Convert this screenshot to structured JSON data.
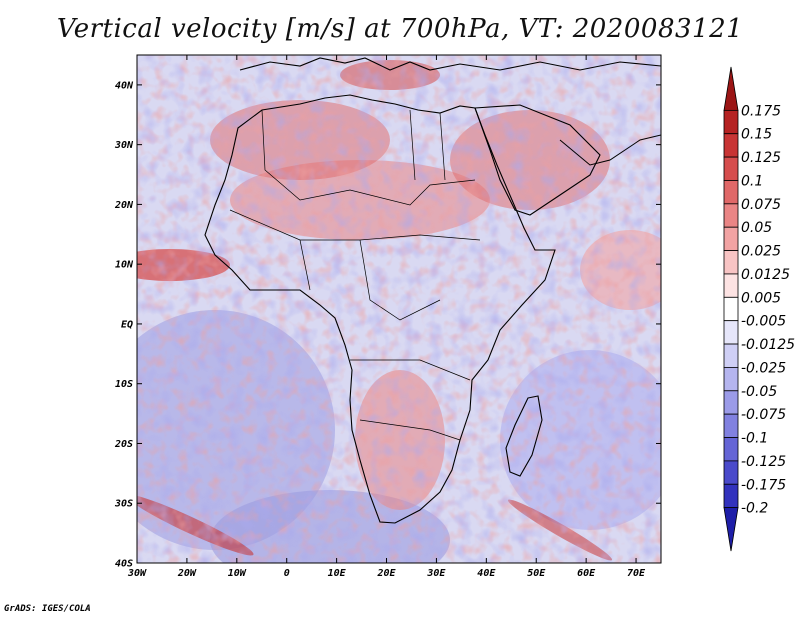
{
  "title": "Vertical velocity [m/s] at 700hPa, VT: 2020083121",
  "credit": "GrADS: IGES/COLA",
  "map": {
    "lon_range": [
      -30,
      75
    ],
    "lat_range": [
      -40,
      45
    ],
    "lon_ticks": [
      "30W",
      "20W",
      "10W",
      "0",
      "10E",
      "20E",
      "30E",
      "40E",
      "50E",
      "60E",
      "70E"
    ],
    "lat_ticks": [
      "40N",
      "30N",
      "20N",
      "10N",
      "EQ",
      "10S",
      "20S",
      "30S",
      "40S"
    ]
  },
  "colorbar": {
    "labels": [
      "0.175",
      "0.15",
      "0.125",
      "0.1",
      "0.075",
      "0.05",
      "0.025",
      "0.0125",
      "0.005",
      "-0.005",
      "-0.0125",
      "-0.025",
      "-0.05",
      "-0.075",
      "-0.1",
      "-0.125",
      "-0.175",
      "-0.2"
    ],
    "colors": [
      "#9b1515",
      "#b52222",
      "#c83434",
      "#d64d4d",
      "#e06868",
      "#ea8585",
      "#f2a3a3",
      "#f8c4c4",
      "#fde3e3",
      "#ffffff",
      "#e6e6fa",
      "#cfcff5",
      "#b5b5ef",
      "#9b9be8",
      "#8181e0",
      "#6565d6",
      "#4a4acb",
      "#3232bd",
      "#1e1ea8"
    ]
  }
}
